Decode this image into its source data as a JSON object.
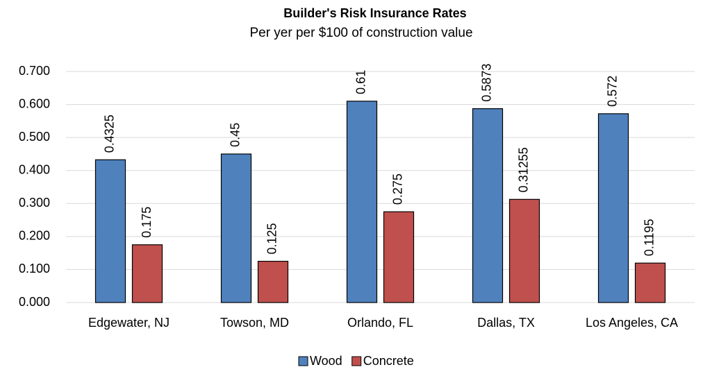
{
  "chart_data": {
    "type": "bar",
    "title": "Builder's Risk Insurance Rates",
    "subtitle": "Per yer per $100 of construction value",
    "categories": [
      "Edgewater, NJ",
      "Towson, MD",
      "Orlando, FL",
      "Dallas, TX",
      "Los Angeles, CA"
    ],
    "series": [
      {
        "name": "Wood",
        "color": "#4f81bd",
        "values": [
          0.4325,
          0.45,
          0.61,
          0.5873,
          0.572
        ]
      },
      {
        "name": "Concrete",
        "color": "#c0504d",
        "values": [
          0.175,
          0.125,
          0.275,
          0.31255,
          0.1195
        ]
      }
    ],
    "ylim": [
      0,
      0.7
    ],
    "yticks": [
      {
        "value": 0,
        "label": "0.000"
      },
      {
        "value": 0.1,
        "label": "0.100"
      },
      {
        "value": 0.2,
        "label": "0.200"
      },
      {
        "value": 0.3,
        "label": "0.300"
      },
      {
        "value": 0.4,
        "label": "0.400"
      },
      {
        "value": 0.5,
        "label": "0.500"
      },
      {
        "value": 0.6,
        "label": "0.600"
      },
      {
        "value": 0.7,
        "label": "0.700"
      }
    ],
    "grid": true,
    "legend": "bottom"
  }
}
